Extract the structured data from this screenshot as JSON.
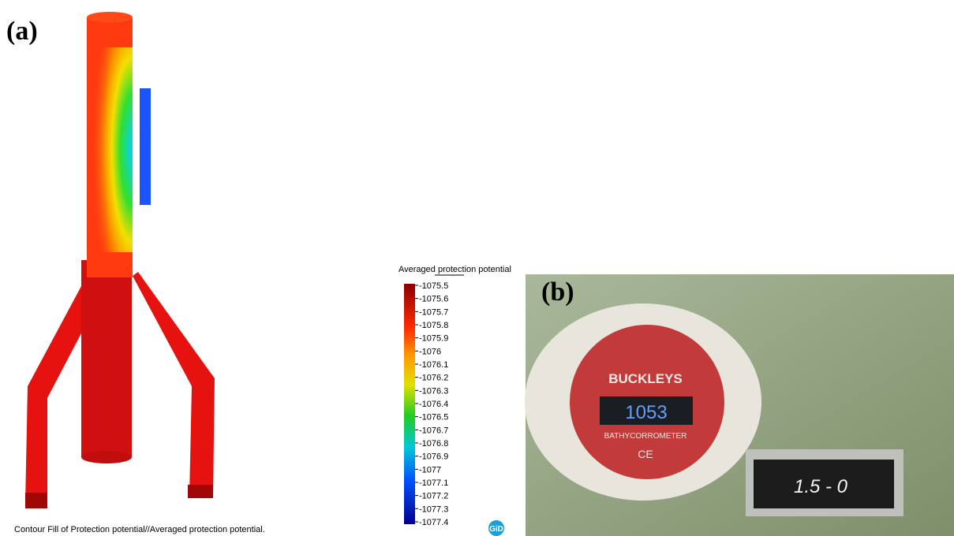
{
  "panel_a": {
    "label": "(a)",
    "caption": "Contour Fill of Protection potential//Averaged protection potential.",
    "logo": "GiD",
    "colorbar": {
      "title": "Averaged protection potential",
      "ticks": [
        -1075.5,
        -1075.6,
        -1075.7,
        -1075.8,
        -1075.9,
        -1076,
        -1076.1,
        -1076.2,
        -1076.3,
        -1076.4,
        -1076.5,
        -1076.7,
        -1076.8,
        -1076.9,
        -1077,
        -1077.1,
        -1077.2,
        -1077.3,
        -1077.4
      ]
    }
  },
  "panel_b": {
    "label": "(b)",
    "brand": "BUCKLEYS",
    "reading": "1053",
    "model": "BATHYCORROMETER",
    "mark": "CE",
    "tag": "1.5 - 0"
  }
}
